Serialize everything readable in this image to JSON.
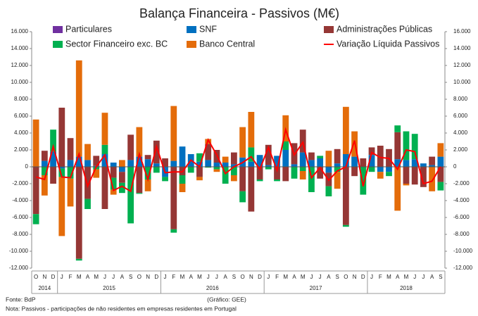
{
  "chart_data": {
    "type": "bar",
    "stacked": true,
    "title": "Balança Financeira - Passivos (M€)",
    "categories": [
      "O",
      "N",
      "D",
      "J",
      "F",
      "M",
      "A",
      "M",
      "J",
      "J",
      "A",
      "S",
      "O",
      "N",
      "D",
      "J",
      "F",
      "M",
      "A",
      "M",
      "J",
      "J",
      "A",
      "S",
      "O",
      "N",
      "D",
      "J",
      "F",
      "M",
      "A",
      "M",
      "J",
      "J",
      "A",
      "S",
      "O",
      "N",
      "D",
      "J",
      "F",
      "M",
      "A",
      "M",
      "J",
      "J",
      "A",
      "S"
    ],
    "years": [
      "2014",
      "2015",
      "2016",
      "2017",
      "2018"
    ],
    "series": [
      {
        "name": "Particulares",
        "color": "#7030a0",
        "values": [
          0,
          0,
          0,
          0,
          0,
          0,
          0,
          0,
          0,
          0,
          0,
          0,
          0,
          0,
          0,
          0,
          0,
          0,
          0,
          0,
          0,
          0,
          0,
          0,
          0,
          0,
          0,
          0,
          0,
          0,
          0,
          0,
          0,
          0,
          0,
          0,
          0,
          0,
          0,
          0,
          0,
          0,
          0,
          0,
          0,
          0,
          0,
          0
        ]
      },
      {
        "name": "SNF",
        "color": "#0070c0",
        "values": [
          0,
          700,
          1800,
          -200,
          800,
          1200,
          800,
          100,
          1500,
          500,
          -600,
          800,
          1200,
          900,
          400,
          -1200,
          700,
          2400,
          1500,
          600,
          800,
          500,
          500,
          300,
          1100,
          600,
          1400,
          200,
          1300,
          2000,
          300,
          1700,
          800,
          1000,
          -700,
          400,
          1500,
          1200,
          0,
          1400,
          -600,
          -600,
          900,
          800,
          900,
          400,
          200,
          1200
        ]
      },
      {
        "name": "Administrações Públicas",
        "color": "#953735",
        "values": [
          -5600,
          1200,
          -2000,
          7000,
          2600,
          -10900,
          -3800,
          1200,
          -5000,
          -1300,
          -1300,
          3000,
          -3100,
          500,
          2700,
          1000,
          -7400,
          -1000,
          0,
          -1200,
          1900,
          1500,
          0,
          1400,
          -2900,
          -5300,
          -1500,
          2400,
          -1500,
          -1700,
          2500,
          2700,
          900,
          -1400,
          -1600,
          1700,
          -6900,
          -1100,
          1000,
          900,
          2500,
          2100,
          3200,
          -2000,
          -2100,
          -2400,
          1000,
          -1800
        ]
      },
      {
        "name": "Sector Financeiro exc. BC",
        "color": "#00b050",
        "values": [
          -1200,
          -1000,
          2600,
          -1000,
          -1400,
          -200,
          -1200,
          -300,
          1100,
          -1400,
          -1200,
          -6700,
          -100,
          -1500,
          -700,
          -500,
          -400,
          -1000,
          -700,
          1000,
          -100,
          -300,
          -2000,
          -1000,
          -1300,
          1700,
          -200,
          -300,
          -200,
          1000,
          -1400,
          -500,
          -3000,
          300,
          -1200,
          -600,
          -200,
          0,
          -3300,
          -600,
          0,
          -500,
          800,
          3400,
          3000,
          0,
          0,
          -1000
        ]
      },
      {
        "name": "Banco Central",
        "color": "#e46c0a",
        "values": [
          5600,
          -2400,
          0,
          -7000,
          -3300,
          11400,
          1900,
          -1000,
          3800,
          -600,
          800,
          0,
          3500,
          -1400,
          0,
          0,
          6500,
          -1000,
          0,
          -400,
          600,
          -300,
          700,
          -700,
          3600,
          4200,
          0,
          0,
          0,
          3100,
          0,
          -1000,
          0,
          0,
          1900,
          -2000,
          5600,
          3000,
          0,
          0,
          -800,
          0,
          -5200,
          -200,
          0,
          0,
          -2900,
          1600
        ]
      },
      {
        "name": "Variação Líquida Passivos",
        "color": "#ff0000",
        "kind": "line",
        "values": [
          -1200,
          -1500,
          2400,
          -1200,
          -1300,
          1500,
          -2300,
          0,
          1400,
          -2800,
          -2300,
          -2900,
          1500,
          -1500,
          2400,
          -700,
          -600,
          -600,
          800,
          0,
          3200,
          1400,
          -800,
          0,
          500,
          1200,
          -300,
          2300,
          -400,
          4400,
          1400,
          2900,
          -1300,
          -100,
          -1600,
          -500,
          0,
          3100,
          -2300,
          1700,
          1100,
          1000,
          -300,
          2000,
          1800,
          -2000,
          -1700,
          0
        ]
      }
    ],
    "ylim": [
      -12000,
      16000
    ],
    "yticks": [
      {
        "value": -12000,
        "label": "-12.000"
      },
      {
        "value": -10000,
        "label": "-10.000"
      },
      {
        "value": -8000,
        "label": "-8.000"
      },
      {
        "value": -6000,
        "label": "-6.000"
      },
      {
        "value": -4000,
        "label": "-4.000"
      },
      {
        "value": -2000,
        "label": "-2.000"
      },
      0,
      {
        "value": 2000,
        "label": "2.000"
      },
      {
        "value": 4000,
        "label": "4.000"
      },
      {
        "value": 6000,
        "label": "6.000"
      },
      {
        "value": 8000,
        "label": "8.000"
      },
      {
        "value": 10000,
        "label": "10.000"
      },
      {
        "value": 12000,
        "label": "12.000"
      },
      {
        "value": 14000,
        "label": "14.000"
      },
      {
        "value": 16000,
        "label": "16.000"
      }
    ],
    "y2lim": [
      -12000,
      16000
    ],
    "y2ticks": [
      {
        "value": -12000,
        "label": "-12.000"
      },
      {
        "value": -10000,
        "label": "-10.000"
      },
      {
        "value": -8000,
        "label": "-8.000"
      },
      {
        "value": -6000,
        "label": "-6.000"
      },
      {
        "value": -4000,
        "label": "-4.000"
      },
      {
        "value": -2000,
        "label": "-2.000"
      },
      0,
      {
        "value": 2000,
        "label": "2.000"
      },
      {
        "value": 4000,
        "label": "4.000"
      },
      {
        "value": 6000,
        "label": "6.000"
      },
      {
        "value": 8000,
        "label": "8.000"
      },
      {
        "value": 10000,
        "label": "10.000"
      },
      {
        "value": 12000,
        "label": "12.000"
      },
      {
        "value": 14000,
        "label": "14.000"
      },
      {
        "value": 16000,
        "label": "16.000"
      }
    ],
    "source": "Fonte: BdP",
    "credit": "(Gráfico: GEE)",
    "note": "Nota: Passivos - participações de não residentes em empresas residentes em Portugal"
  }
}
